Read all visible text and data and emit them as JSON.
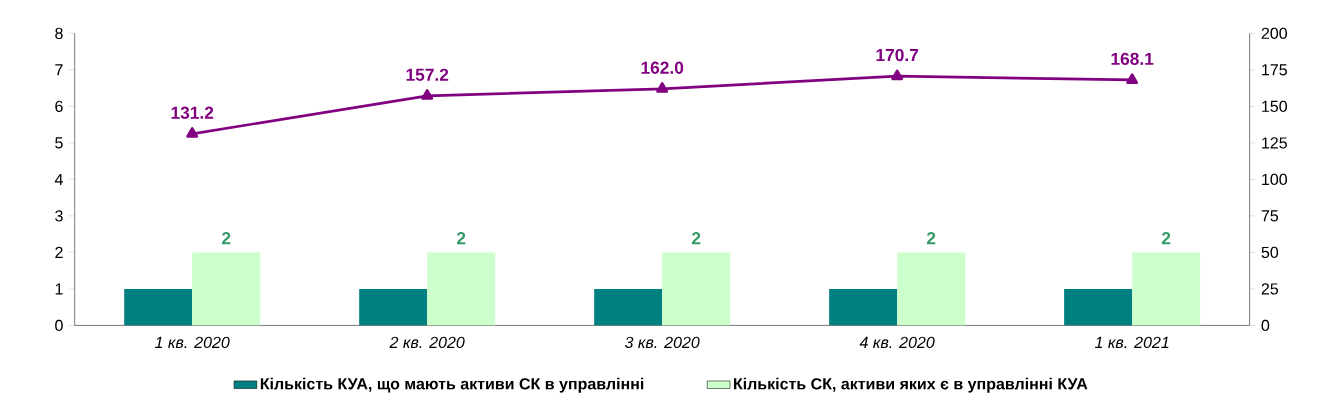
{
  "chart_data": {
    "type": "bar",
    "categories": [
      "1 кв. 2020",
      "2 кв. 2020",
      "3 кв. 2020",
      "4 кв. 2020",
      "1 кв. 2021"
    ],
    "series": [
      {
        "name": "Кількість КУА, що мають активи СК в управлінні",
        "color": "#008080",
        "values": [
          1,
          1,
          1,
          1,
          1
        ]
      },
      {
        "name": "Кількість СК, активи яких є в управлінні КУА",
        "color": "#ccffcc",
        "values": [
          2,
          2,
          2,
          2,
          2
        ],
        "value_labels": [
          "2",
          "2",
          "2",
          "2",
          "2"
        ]
      },
      {
        "type": "line",
        "axis": "y2",
        "color": "#800080",
        "values": [
          131.2,
          157.2,
          162.0,
          170.7,
          168.1
        ],
        "value_labels": [
          "131.2",
          "157.2",
          "162.0",
          "170.7",
          "168.1"
        ]
      }
    ],
    "ylim": [
      0,
      8
    ],
    "yticks": [
      0,
      1,
      2,
      3,
      4,
      5,
      6,
      7,
      8
    ],
    "y2lim": [
      0,
      200
    ],
    "y2ticks": [
      0,
      25,
      50,
      75,
      100,
      125,
      150,
      175,
      200
    ],
    "legend": "bottom",
    "marker": "triangle",
    "line_style": "solid"
  }
}
